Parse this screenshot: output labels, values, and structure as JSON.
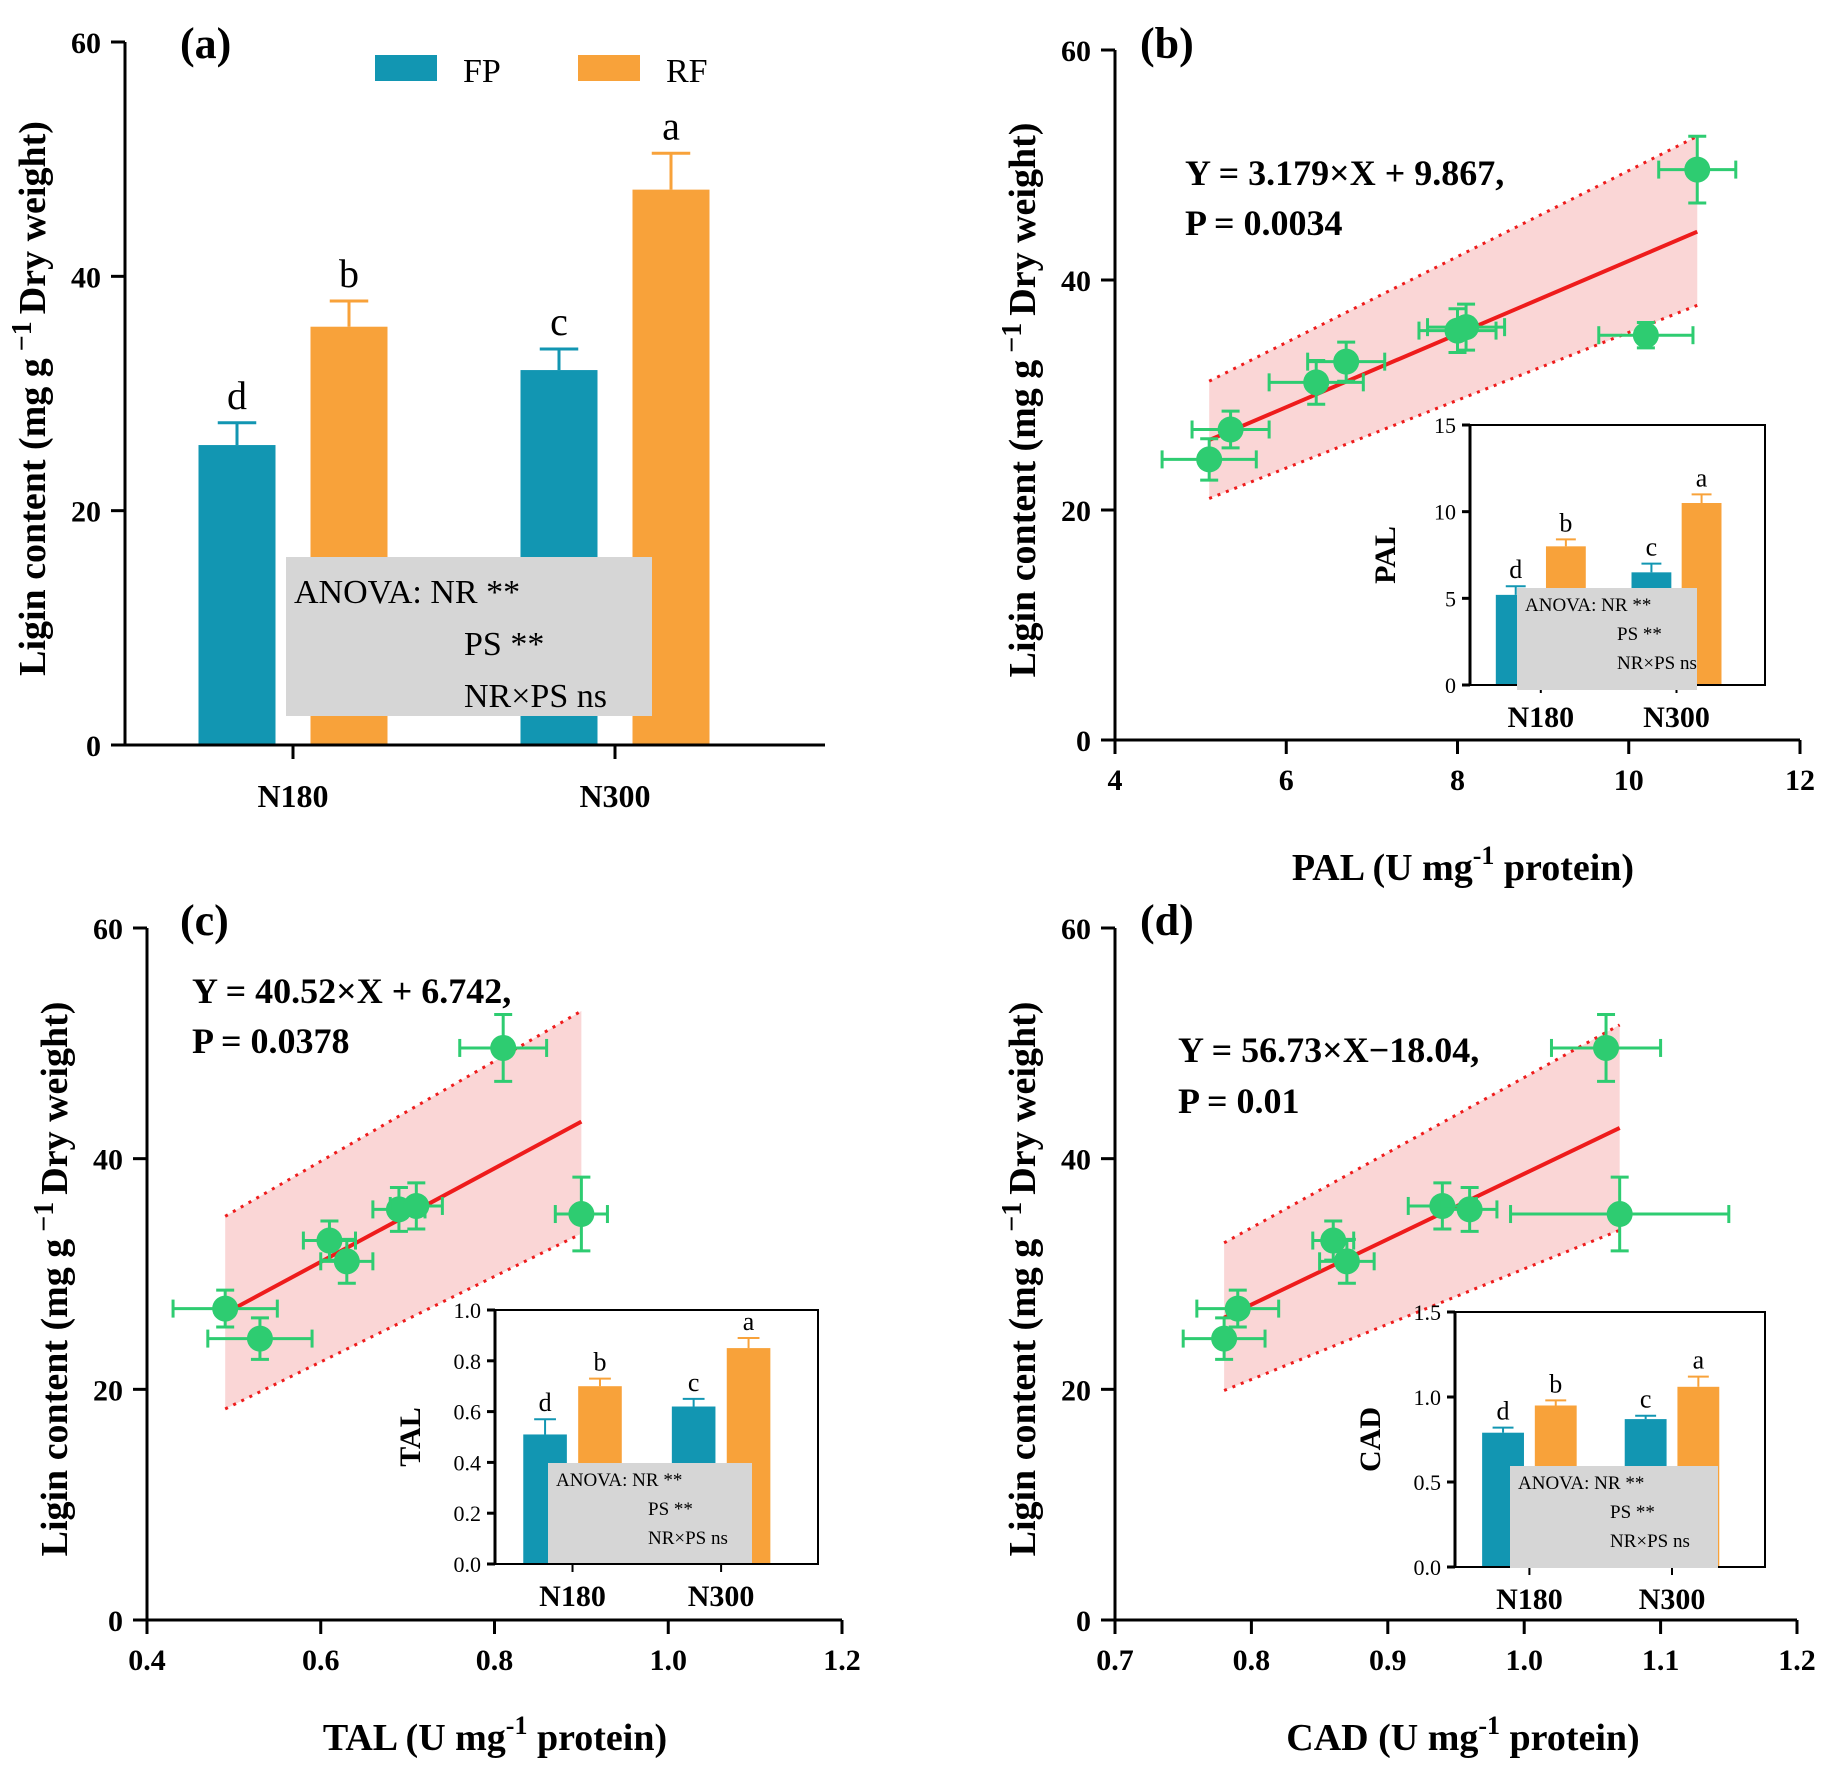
{
  "colors": {
    "FP": "#1296b2",
    "RF": "#f8a23a",
    "point": "#2ecc71",
    "errbar": "#2ecc71",
    "fit": "#ee1c1c",
    "band": "#f5b5b5",
    "anova_bg": "#d6d6d6"
  },
  "legend": [
    "FP",
    "RF"
  ],
  "y_axis_title": "Ligin content (mg g",
  "y_axis_title_sup": "−1",
  "y_axis_title_tail": " Dry weight)",
  "chart_data": [
    {
      "id": "a",
      "type": "bar",
      "panel_label": "(a)",
      "categories": [
        "N180",
        "N300"
      ],
      "series": [
        {
          "name": "FP",
          "values": [
            25.6,
            32.0
          ],
          "errors": [
            1.9,
            1.8
          ],
          "letters": [
            "d",
            "c"
          ]
        },
        {
          "name": "RF",
          "values": [
            35.7,
            47.4
          ],
          "errors": [
            2.2,
            3.1
          ],
          "letters": [
            "b",
            "a"
          ]
        }
      ],
      "ylim": [
        0,
        60
      ],
      "yticks": [
        "0",
        "20",
        "40",
        "60"
      ],
      "ylabel": "Ligin content (mg g −1 Dry weight)",
      "anova": [
        "ANOVA: NR **",
        "PS **",
        "NR×PS ns"
      ]
    },
    {
      "id": "b",
      "type": "scatter",
      "panel_label": "(b)",
      "equation": "Y = 3.179×X + 9.867,",
      "p_value": "P = 0.0034",
      "xlabel": "PAL (U mg",
      "xlabel_sup": "-1",
      "xlabel_tail": " protein)",
      "xlim": [
        4,
        12
      ],
      "xticks": [
        "4",
        "6",
        "8",
        "10",
        "12"
      ],
      "ylim": [
        0,
        60
      ],
      "yticks": [
        "0",
        "20",
        "40",
        "60"
      ],
      "points": [
        {
          "x": 5.1,
          "y": 24.4,
          "xerr": 0.55,
          "yerr": 1.8
        },
        {
          "x": 5.35,
          "y": 27.0,
          "xerr": 0.45,
          "yerr": 1.6
        },
        {
          "x": 6.35,
          "y": 31.1,
          "xerr": 0.55,
          "yerr": 1.9
        },
        {
          "x": 6.7,
          "y": 32.9,
          "xerr": 0.45,
          "yerr": 1.7
        },
        {
          "x": 8.0,
          "y": 35.6,
          "xerr": 0.45,
          "yerr": 1.9
        },
        {
          "x": 8.1,
          "y": 35.9,
          "xerr": 0.45,
          "yerr": 2.0
        },
        {
          "x": 10.2,
          "y": 35.2,
          "xerr": 0.55,
          "yerr": 1.1
        },
        {
          "x": 10.8,
          "y": 49.6,
          "xerr": 0.45,
          "yerr": 2.9
        }
      ],
      "fit": {
        "slope": 3.179,
        "intercept": 9.867,
        "x_range": [
          5.1,
          10.8
        ],
        "band_lower": [
          21.0,
          37.8
        ],
        "band_upper": [
          31.2,
          52.5
        ]
      },
      "inset": {
        "ylabel": "PAL",
        "ylim": [
          0,
          15
        ],
        "yticks": [
          "0",
          "5",
          "10",
          "15"
        ],
        "categories": [
          "N180",
          "N300"
        ],
        "series": [
          {
            "name": "FP",
            "values": [
              5.2,
              6.5
            ],
            "errors": [
              0.5,
              0.5
            ],
            "letters": [
              "d",
              "c"
            ]
          },
          {
            "name": "RF",
            "values": [
              8.0,
              10.5
            ],
            "errors": [
              0.4,
              0.5
            ],
            "letters": [
              "b",
              "a"
            ]
          }
        ],
        "anova": [
          "ANOVA: NR **",
          "PS **",
          "NR×PS ns"
        ]
      }
    },
    {
      "id": "c",
      "type": "scatter",
      "panel_label": "(c)",
      "equation": "Y = 40.52×X + 6.742,",
      "p_value": "P = 0.0378",
      "xlabel": "TAL (U mg",
      "xlabel_sup": "-1",
      "xlabel_tail": " protein)",
      "xlim": [
        0.4,
        1.2
      ],
      "xticks": [
        "0.4",
        "0.6",
        "0.8",
        "1.0",
        "1.2"
      ],
      "ylim": [
        0,
        60
      ],
      "yticks": [
        "0",
        "20",
        "40",
        "60"
      ],
      "points": [
        {
          "x": 0.49,
          "y": 27.0,
          "xerr": 0.06,
          "yerr": 1.6
        },
        {
          "x": 0.53,
          "y": 24.4,
          "xerr": 0.06,
          "yerr": 1.8
        },
        {
          "x": 0.61,
          "y": 32.9,
          "xerr": 0.03,
          "yerr": 1.7
        },
        {
          "x": 0.63,
          "y": 31.1,
          "xerr": 0.03,
          "yerr": 1.9
        },
        {
          "x": 0.69,
          "y": 35.6,
          "xerr": 0.03,
          "yerr": 1.9
        },
        {
          "x": 0.71,
          "y": 35.9,
          "xerr": 0.03,
          "yerr": 2.0
        },
        {
          "x": 0.81,
          "y": 49.6,
          "xerr": 0.05,
          "yerr": 2.9
        },
        {
          "x": 0.9,
          "y": 35.2,
          "xerr": 0.03,
          "yerr": 3.2
        }
      ],
      "fit": {
        "slope": 40.52,
        "intercept": 6.742,
        "x_range": [
          0.49,
          0.9
        ],
        "band_lower": [
          18.3,
          33.5
        ],
        "band_upper": [
          35.0,
          52.8
        ]
      },
      "inset": {
        "ylabel": "TAL",
        "ylim": [
          0,
          1
        ],
        "yticks": [
          "0.0",
          "0.2",
          "0.4",
          "0.6",
          "0.8",
          "1.0"
        ],
        "categories": [
          "N180",
          "N300"
        ],
        "series": [
          {
            "name": "FP",
            "values": [
              0.51,
              0.62
            ],
            "errors": [
              0.06,
              0.03
            ],
            "letters": [
              "d",
              "c"
            ]
          },
          {
            "name": "RF",
            "values": [
              0.7,
              0.85
            ],
            "errors": [
              0.03,
              0.04
            ],
            "letters": [
              "b",
              "a"
            ]
          }
        ],
        "anova": [
          "ANOVA: NR **",
          "PS **",
          "NR×PS ns"
        ]
      }
    },
    {
      "id": "d",
      "type": "scatter",
      "panel_label": "(d)",
      "equation": "Y = 56.73×X−18.04,",
      "p_value": "P = 0.01",
      "xlabel": "CAD (U mg",
      "xlabel_sup": "-1",
      "xlabel_tail": " protein)",
      "xlim": [
        0.7,
        1.2
      ],
      "xticks": [
        "0.7",
        "0.8",
        "0.9",
        "1.0",
        "1.1",
        "1.2"
      ],
      "ylim": [
        0,
        60
      ],
      "yticks": [
        "0",
        "20",
        "40",
        "60"
      ],
      "points": [
        {
          "x": 0.78,
          "y": 24.4,
          "xerr": 0.03,
          "yerr": 1.8
        },
        {
          "x": 0.79,
          "y": 27.0,
          "xerr": 0.03,
          "yerr": 1.6
        },
        {
          "x": 0.86,
          "y": 32.9,
          "xerr": 0.015,
          "yerr": 1.7
        },
        {
          "x": 0.87,
          "y": 31.1,
          "xerr": 0.02,
          "yerr": 1.9
        },
        {
          "x": 0.94,
          "y": 35.9,
          "xerr": 0.025,
          "yerr": 2.0
        },
        {
          "x": 0.96,
          "y": 35.6,
          "xerr": 0.02,
          "yerr": 1.9
        },
        {
          "x": 1.06,
          "y": 49.6,
          "xerr": 0.04,
          "yerr": 2.9
        },
        {
          "x": 1.07,
          "y": 35.2,
          "xerr": 0.08,
          "yerr": 3.2
        }
      ],
      "fit": {
        "slope": 56.73,
        "intercept": -18.04,
        "x_range": [
          0.78,
          1.07
        ],
        "band_lower": [
          19.9,
          33.8
        ],
        "band_upper": [
          32.7,
          51.6
        ]
      },
      "inset": {
        "ylabel": "CAD",
        "ylim": [
          0,
          1.5
        ],
        "yticks": [
          "0.0",
          "0.5",
          "1.0",
          "1.5"
        ],
        "categories": [
          "N180",
          "N300"
        ],
        "series": [
          {
            "name": "FP",
            "values": [
              0.79,
              0.87
            ],
            "errors": [
              0.03,
              0.02
            ],
            "letters": [
              "d",
              "c"
            ]
          },
          {
            "name": "RF",
            "values": [
              0.95,
              1.06
            ],
            "errors": [
              0.03,
              0.06
            ],
            "letters": [
              "b",
              "a"
            ]
          }
        ],
        "anova": [
          "ANOVA: NR **",
          "PS **",
          "NR×PS ns"
        ]
      }
    }
  ]
}
